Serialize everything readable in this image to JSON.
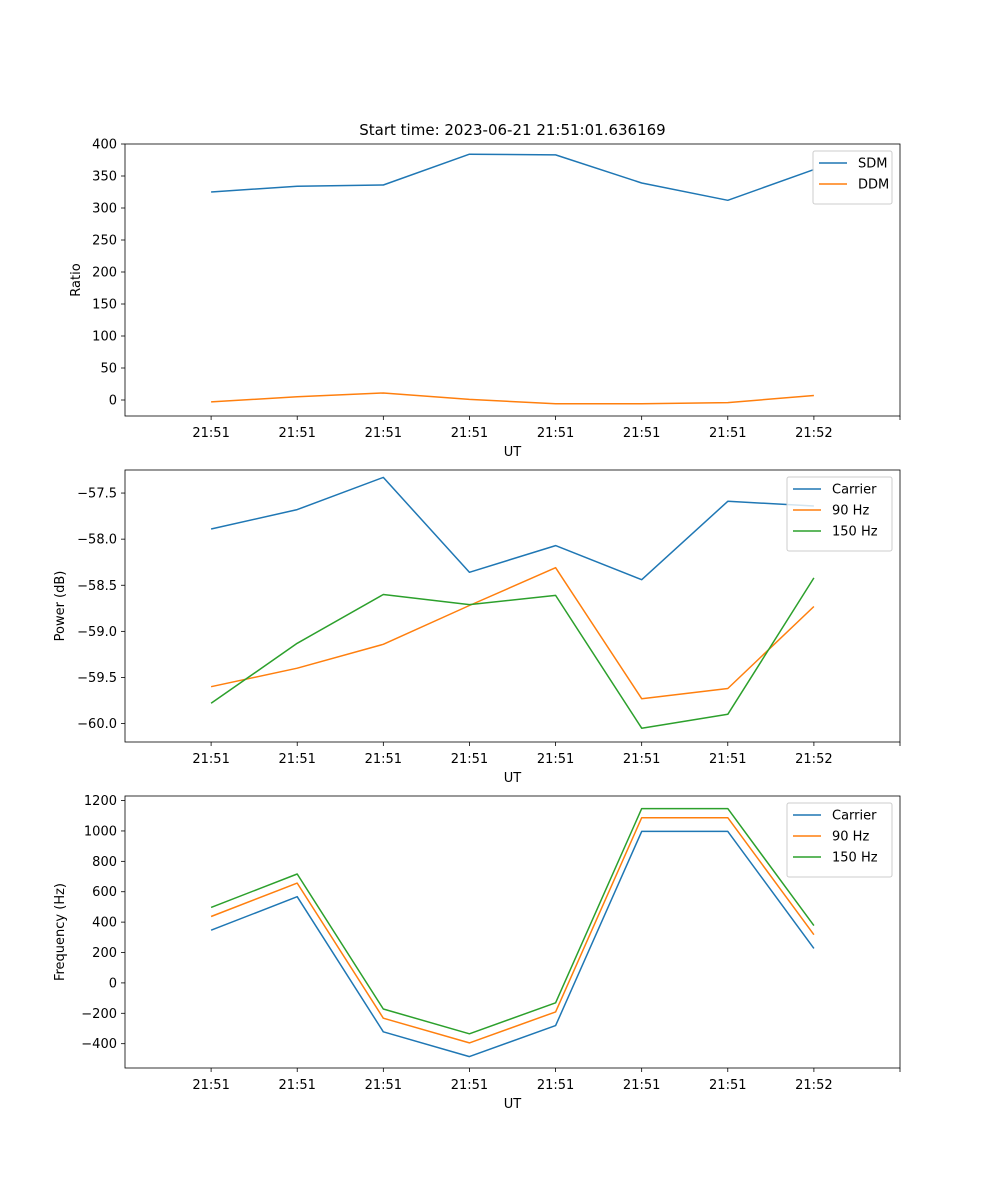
{
  "figure_title": "Start time: 2023-06-21 21:51:01.636169",
  "chart_data": [
    {
      "type": "line",
      "xlabel": "UT",
      "ylabel": "Ratio",
      "x": [
        1,
        2,
        3,
        4,
        5,
        6,
        7,
        8
      ],
      "x_tick_labels": [
        "21:51",
        "21:51",
        "21:51",
        "21:51",
        "21:51",
        "21:51",
        "21:51",
        "21:52"
      ],
      "xlim": [
        0,
        9
      ],
      "ylim": [
        -25,
        400
      ],
      "yticks": [
        0,
        50,
        100,
        150,
        200,
        250,
        300,
        350,
        400
      ],
      "legend": "top-right",
      "series": [
        {
          "name": "SDM",
          "color": "#1f77b4",
          "values": [
            325,
            334,
            336,
            384,
            383,
            339,
            312,
            360
          ]
        },
        {
          "name": "DDM",
          "color": "#ff7f0e",
          "values": [
            -3,
            5,
            11,
            1,
            -6,
            -6,
            -4,
            7
          ]
        }
      ]
    },
    {
      "type": "line",
      "xlabel": "UT",
      "ylabel": "Power (dB)",
      "x": [
        1,
        2,
        3,
        4,
        5,
        6,
        7,
        8
      ],
      "x_tick_labels": [
        "21:51",
        "21:51",
        "21:51",
        "21:51",
        "21:51",
        "21:51",
        "21:51",
        "21:52"
      ],
      "xlim": [
        0,
        9
      ],
      "ylim": [
        -60.2,
        -57.25
      ],
      "yticks": [
        -60.0,
        -59.5,
        -59.0,
        -58.5,
        -58.0,
        -57.5
      ],
      "ytick_labels": [
        "−60.0",
        "−59.5",
        "−59.0",
        "−58.5",
        "−58.0",
        "−57.5"
      ],
      "legend": "top-right",
      "series": [
        {
          "name": "Carrier",
          "color": "#1f77b4",
          "values": [
            -57.89,
            -57.68,
            -57.33,
            -58.36,
            -58.07,
            -58.44,
            -57.59,
            -57.64
          ]
        },
        {
          "name": "90 Hz",
          "color": "#ff7f0e",
          "values": [
            -59.6,
            -59.4,
            -59.14,
            -58.72,
            -58.31,
            -59.73,
            -59.62,
            -58.73
          ]
        },
        {
          "name": "150 Hz",
          "color": "#2ca02c",
          "values": [
            -59.78,
            -59.13,
            -58.6,
            -58.71,
            -58.61,
            -60.05,
            -59.9,
            -58.42
          ]
        }
      ]
    },
    {
      "type": "line",
      "xlabel": "UT",
      "ylabel": "Frequency (Hz)",
      "x": [
        1,
        2,
        3,
        4,
        5,
        6,
        7,
        8
      ],
      "x_tick_labels": [
        "21:51",
        "21:51",
        "21:51",
        "21:51",
        "21:51",
        "21:51",
        "21:51",
        "21:52"
      ],
      "xlim": [
        0,
        9
      ],
      "ylim": [
        -560,
        1230
      ],
      "yticks": [
        -400,
        -200,
        0,
        200,
        400,
        600,
        800,
        1000,
        1200
      ],
      "ytick_labels": [
        "−400",
        "−200",
        "0",
        "200",
        "400",
        "600",
        "800",
        "1000",
        "1200"
      ],
      "legend": "top-right",
      "series": [
        {
          "name": "Carrier",
          "color": "#1f77b4",
          "values": [
            347,
            567,
            -322,
            -485,
            -281,
            997,
            997,
            227
          ]
        },
        {
          "name": "90 Hz",
          "color": "#ff7f0e",
          "values": [
            437,
            657,
            -232,
            -395,
            -191,
            1087,
            1087,
            317
          ]
        },
        {
          "name": "150 Hz",
          "color": "#2ca02c",
          "values": [
            497,
            717,
            -172,
            -335,
            -131,
            1147,
            1147,
            377
          ]
        }
      ]
    }
  ]
}
